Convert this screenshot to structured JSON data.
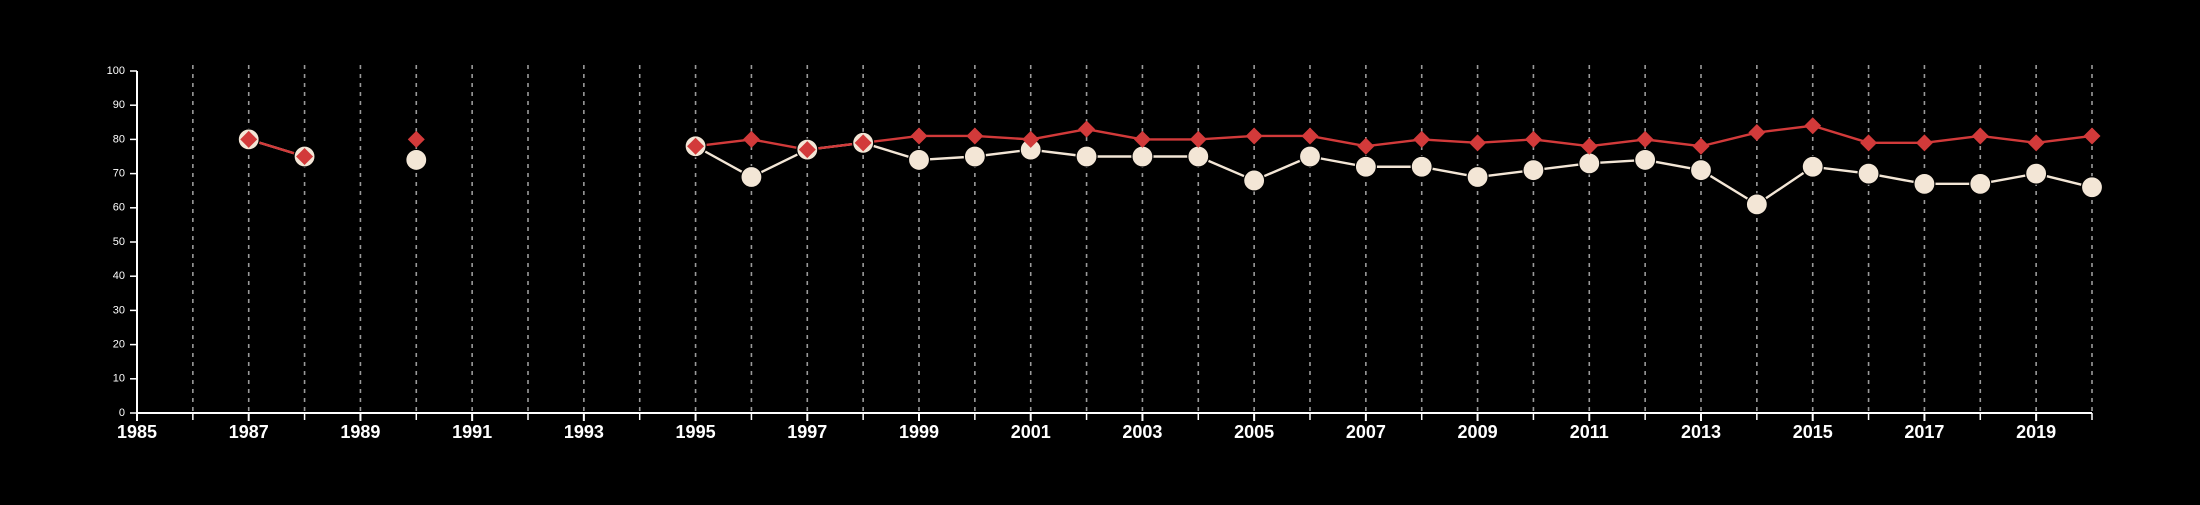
{
  "chart_data": {
    "type": "line",
    "title": "",
    "xlabel": "",
    "ylabel": "",
    "xlim": [
      1985,
      2020
    ],
    "ylim": [
      0,
      100
    ],
    "x_ticks": [
      1985,
      1987,
      1989,
      1991,
      1993,
      1995,
      1997,
      1999,
      2001,
      2003,
      2005,
      2007,
      2009,
      2011,
      2013,
      2015,
      2017,
      2019
    ],
    "x_tick_labels": [
      "1985",
      "1987",
      "1989",
      "1991",
      "1993",
      "1995",
      "1997",
      "1999",
      "2001",
      "2003",
      "2005",
      "2007",
      "2009",
      "2011",
      "2013",
      "2015",
      "2017",
      "2019"
    ],
    "y_ticks": [
      0,
      10,
      20,
      30,
      40,
      50,
      60,
      70,
      80,
      90,
      100
    ],
    "y_tick_labels": [
      "0",
      "10",
      "20",
      "30",
      "40",
      "50",
      "60",
      "70",
      "80",
      "90",
      "100"
    ],
    "vertical_gridlines": [
      1986,
      1987,
      1988,
      1989,
      1990,
      1991,
      1992,
      1993,
      1994,
      1995,
      1996,
      1997,
      1998,
      1999,
      2000,
      2001,
      2002,
      2003,
      2004,
      2005,
      2006,
      2007,
      2008,
      2009,
      2010,
      2011,
      2012,
      2013,
      2014,
      2015,
      2016,
      2017,
      2018,
      2019,
      2020
    ],
    "grid": "vertical dashed",
    "legend": "none",
    "colors": {
      "background": "#000000",
      "axis": "#ffffff",
      "grid": "#9a9a9a",
      "series_circle": "#f3e6d6",
      "series_diamond": "#d23a3a"
    },
    "x": [
      1987,
      1988,
      1990,
      1995,
      1996,
      1997,
      1998,
      1999,
      2000,
      2001,
      2002,
      2003,
      2004,
      2005,
      2006,
      2007,
      2008,
      2009,
      2010,
      2011,
      2012,
      2013,
      2014,
      2015,
      2016,
      2017,
      2018,
      2019,
      2020
    ],
    "series": [
      {
        "marker": "circle",
        "color": "#f3e6d6",
        "values": [
          80,
          75,
          74,
          78,
          69,
          77,
          79,
          74,
          75,
          77,
          75,
          75,
          75,
          68,
          75,
          72,
          72,
          69,
          71,
          73,
          74,
          71,
          61,
          72,
          70,
          67,
          67,
          70,
          66
        ]
      },
      {
        "marker": "diamond",
        "color": "#d23a3a",
        "values": [
          80,
          75,
          80,
          78,
          80,
          77,
          79,
          81,
          81,
          80,
          83,
          80,
          80,
          81,
          81,
          78,
          80,
          79,
          80,
          78,
          80,
          78,
          82,
          84,
          79,
          79,
          81,
          79,
          81
        ]
      }
    ]
  }
}
